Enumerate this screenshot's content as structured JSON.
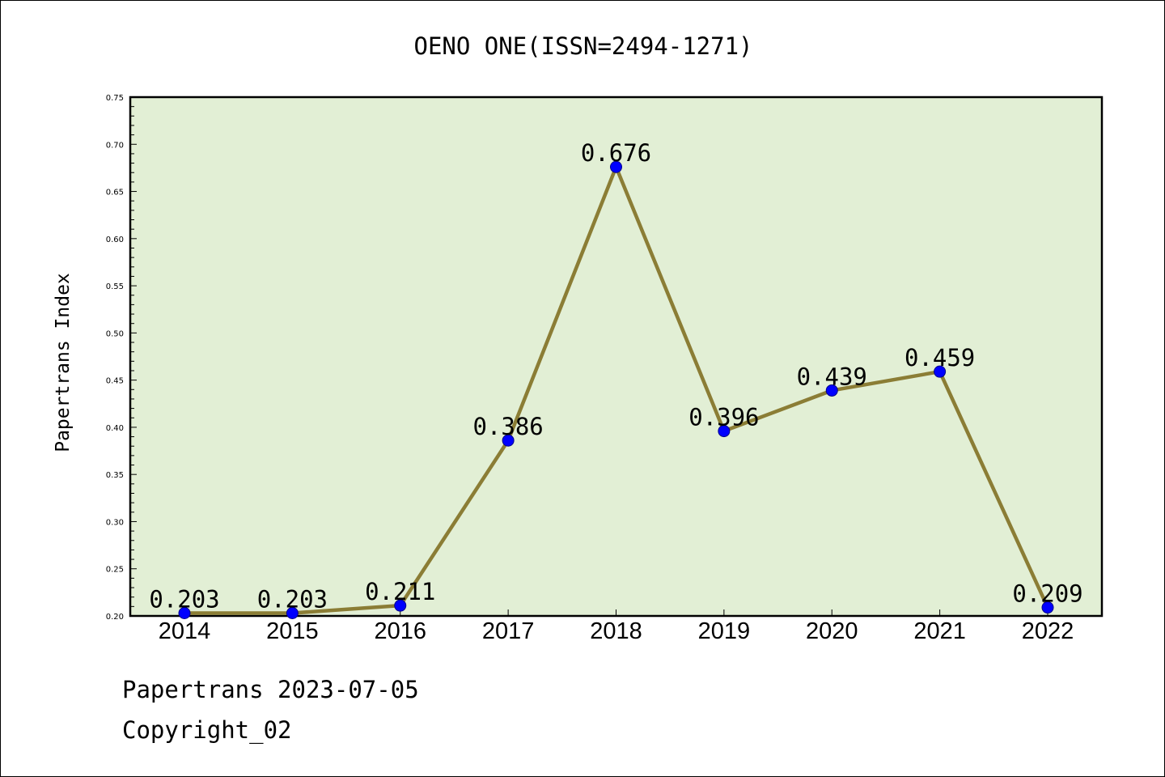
{
  "chart_data": {
    "type": "line",
    "title": "OENO ONE(ISSN=2494-1271)",
    "ylabel": "Papertrans Index",
    "xlabel": "",
    "categories": [
      "2014",
      "2015",
      "2016",
      "2017",
      "2018",
      "2019",
      "2020",
      "2021",
      "2022"
    ],
    "series": [
      {
        "values": [
          0.203,
          0.203,
          0.211,
          0.386,
          0.676,
          0.396,
          0.439,
          0.459,
          0.209
        ],
        "labels": [
          "0.203",
          "0.203",
          "0.211",
          "0.386",
          "0.676",
          "0.396",
          "0.439",
          "0.459",
          "0.209"
        ]
      }
    ],
    "ylim": [
      0.2,
      0.75
    ],
    "yticks": [
      "0.20",
      "0.25",
      "0.30",
      "0.35",
      "0.40",
      "0.45",
      "0.50",
      "0.55",
      "0.60",
      "0.65",
      "0.70",
      "0.75"
    ],
    "grid": false,
    "colors": {
      "plot_background": "#e2efd5",
      "line": "#8b7d35",
      "marker": "#0000ff"
    }
  },
  "footer": {
    "date_text": "Papertrans 2023-07-05",
    "copyright_text": "Copyright_02"
  }
}
